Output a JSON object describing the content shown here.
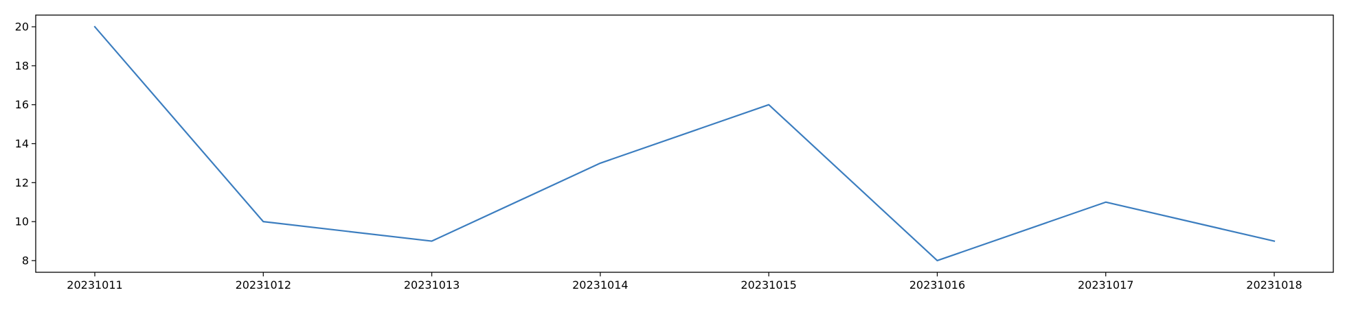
{
  "chart_data": {
    "type": "line",
    "title": "",
    "xlabel": "",
    "ylabel": "",
    "categories": [
      "20231011",
      "20231012",
      "20231013",
      "20231014",
      "20231015",
      "20231016",
      "20231017",
      "20231018"
    ],
    "series": [
      {
        "values": [
          20,
          10,
          9,
          13,
          16,
          8,
          11,
          9
        ],
        "color": "#3b7dbf"
      }
    ],
    "ylim": [
      7.4,
      20.6
    ],
    "yticks": [
      8,
      10,
      12,
      14,
      16,
      18,
      20
    ],
    "grid": false,
    "legend": "none"
  }
}
